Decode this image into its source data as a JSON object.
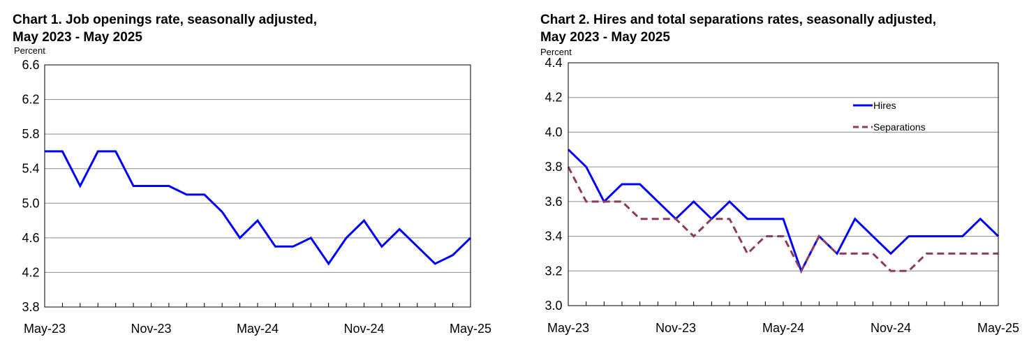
{
  "chart_data": [
    {
      "type": "line",
      "title_lines": [
        "Chart 1. Job openings rate, seasonally adjusted,",
        "May 2023 - May 2025"
      ],
      "ylabel": "Percent",
      "ylim": [
        3.8,
        6.6
      ],
      "y_ticks": [
        "6.6",
        "6.2",
        "5.8",
        "5.4",
        "5.0",
        "4.6",
        "4.2",
        "3.8"
      ],
      "y_tick_values": [
        6.6,
        6.2,
        5.8,
        5.4,
        5.0,
        4.6,
        4.2,
        3.8
      ],
      "x_labels": [
        {
          "index": 0,
          "label": "May-23"
        },
        {
          "index": 6,
          "label": "Nov-23"
        },
        {
          "index": 12,
          "label": "May-24"
        },
        {
          "index": 18,
          "label": "Nov-24"
        },
        {
          "index": 24,
          "label": "May-25"
        }
      ],
      "grid": true,
      "legend": false,
      "series": [
        {
          "name": "Job openings rate",
          "color": "#0000ff",
          "style": "solid",
          "values": [
            5.6,
            5.6,
            5.2,
            5.6,
            5.6,
            5.2,
            5.2,
            5.2,
            5.1,
            5.1,
            4.9,
            4.6,
            4.8,
            4.5,
            4.5,
            4.6,
            4.3,
            4.6,
            4.8,
            4.5,
            4.7,
            4.5,
            4.3,
            4.4,
            4.6
          ]
        }
      ]
    },
    {
      "type": "line",
      "title_lines": [
        "Chart 2. Hires and total separations rates, seasonally adjusted,",
        "May 2023 - May 2025"
      ],
      "ylabel": "Percent",
      "ylim": [
        3.0,
        4.4
      ],
      "y_ticks": [
        "4.4",
        "4.2",
        "4.0",
        "3.8",
        "3.6",
        "3.4",
        "3.2",
        "3.0"
      ],
      "y_tick_values": [
        4.4,
        4.2,
        4.0,
        3.8,
        3.6,
        3.4,
        3.2,
        3.0
      ],
      "x_labels": [
        {
          "index": 0,
          "label": "May-23"
        },
        {
          "index": 6,
          "label": "Nov-23"
        },
        {
          "index": 12,
          "label": "May-24"
        },
        {
          "index": 18,
          "label": "Nov-24"
        },
        {
          "index": 24,
          "label": "May-25"
        }
      ],
      "grid": true,
      "legend": "top-right",
      "series": [
        {
          "name": "Hires",
          "color": "#0000ff",
          "style": "solid",
          "values": [
            3.9,
            3.8,
            3.6,
            3.7,
            3.7,
            3.6,
            3.5,
            3.6,
            3.5,
            3.6,
            3.5,
            3.5,
            3.5,
            3.2,
            3.4,
            3.3,
            3.5,
            3.4,
            3.3,
            3.4,
            3.4,
            3.4,
            3.4,
            3.5,
            3.4
          ]
        },
        {
          "name": "Separations",
          "color": "#8b3a62",
          "style": "dashed",
          "values": [
            3.8,
            3.6,
            3.6,
            3.6,
            3.5,
            3.5,
            3.5,
            3.4,
            3.5,
            3.5,
            3.3,
            3.4,
            3.4,
            3.2,
            3.4,
            3.3,
            3.3,
            3.3,
            3.2,
            3.2,
            3.3,
            3.3,
            3.3,
            3.3,
            3.3
          ]
        }
      ]
    }
  ]
}
